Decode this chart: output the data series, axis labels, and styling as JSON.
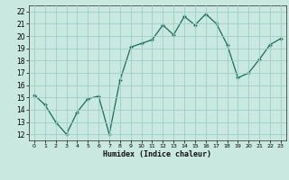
{
  "x": [
    0,
    1,
    2,
    3,
    4,
    5,
    6,
    7,
    8,
    9,
    10,
    11,
    12,
    13,
    14,
    15,
    16,
    17,
    18,
    19,
    20,
    21,
    22,
    23
  ],
  "y": [
    15.2,
    14.4,
    13.0,
    12.0,
    13.8,
    14.9,
    15.1,
    12.0,
    16.4,
    19.1,
    19.4,
    19.7,
    20.9,
    20.1,
    21.6,
    20.9,
    21.8,
    21.0,
    19.3,
    16.6,
    17.0,
    18.1,
    19.3,
    19.8
  ],
  "line_color": "#1a6b5a",
  "marker": "+",
  "bg_color": "#c8e8e0",
  "grid_color": "#9ecec4",
  "xlabel": "Humidex (Indice chaleur)",
  "xlim": [
    -0.5,
    23.5
  ],
  "ylim": [
    11.5,
    22.5
  ],
  "yticks": [
    12,
    13,
    14,
    15,
    16,
    17,
    18,
    19,
    20,
    21,
    22
  ],
  "xticks": [
    0,
    1,
    2,
    3,
    4,
    5,
    6,
    7,
    8,
    9,
    10,
    11,
    12,
    13,
    14,
    15,
    16,
    17,
    18,
    19,
    20,
    21,
    22,
    23
  ]
}
